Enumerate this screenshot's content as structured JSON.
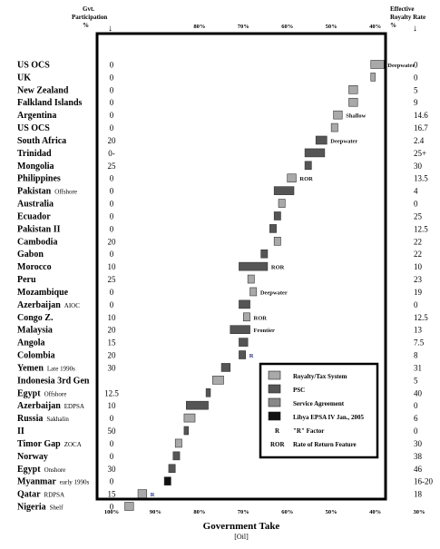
{
  "chart_data": {
    "type": "bar",
    "xlabel": "Government Take",
    "xunit": "[Oil]",
    "xlim": [
      100,
      30
    ],
    "xticks": [
      "100%",
      "90%",
      "80%",
      "70%",
      "60%",
      "50%",
      "40%",
      "30%"
    ],
    "top_ticks": [
      "80%",
      "70%",
      "60%",
      "50%",
      "40%"
    ],
    "left_header": [
      "Gvt.",
      "Participation",
      "%"
    ],
    "right_header": [
      "Effective",
      "Royalty Rate",
      "%"
    ],
    "rows": [
      {
        "country": "US OCS",
        "note": "",
        "participation": "0",
        "royalty": "0",
        "take": [
          38,
          41
        ],
        "kind": "royalty",
        "label": "Deepwater"
      },
      {
        "country": "UK",
        "note": "",
        "participation": "0",
        "royalty": "0",
        "take": [
          40,
          41
        ],
        "kind": "royalty",
        "label": ""
      },
      {
        "country": "New Zealand",
        "note": "",
        "participation": "0",
        "royalty": "5",
        "take": [
          44,
          46
        ],
        "kind": "royalty",
        "label": ""
      },
      {
        "country": "Falkland Islands",
        "note": "",
        "participation": "0",
        "royalty": "9",
        "take": [
          44,
          46
        ],
        "kind": "royalty",
        "label": ""
      },
      {
        "country": "Argentina",
        "note": "",
        "participation": "0",
        "royalty": "14.6",
        "take": [
          47.5,
          49.5
        ],
        "kind": "royalty",
        "label": "Shallow"
      },
      {
        "country": "US OCS",
        "note": "",
        "participation": "0",
        "royalty": "16.7",
        "take": [
          48.5,
          50
        ],
        "kind": "royalty",
        "label": ""
      },
      {
        "country": "South Africa",
        "note": "",
        "participation": "20",
        "royalty": "2.4",
        "take": [
          51,
          53.5
        ],
        "kind": "psc",
        "label": "Deepwater"
      },
      {
        "country": "Trinidad",
        "note": "",
        "participation": "0-",
        "royalty": "25+",
        "take": [
          51.5,
          56
        ],
        "kind": "psc",
        "label": ""
      },
      {
        "country": "Mongolia",
        "note": "",
        "participation": "25",
        "royalty": "30",
        "take": [
          54.5,
          56
        ],
        "kind": "psc",
        "label": ""
      },
      {
        "country": "Philippines",
        "note": "",
        "participation": "0",
        "royalty": "13.5",
        "take": [
          58,
          60
        ],
        "kind": "royalty",
        "label": "ROR"
      },
      {
        "country": "Pakistan",
        "note": "Offshore",
        "participation": "0",
        "royalty": "4",
        "take": [
          58.5,
          63
        ],
        "kind": "psc",
        "label": ""
      },
      {
        "country": "Australia",
        "note": "",
        "participation": "0",
        "royalty": "0",
        "take": [
          60.5,
          62
        ],
        "kind": "royalty",
        "label": ""
      },
      {
        "country": "Ecuador",
        "note": "",
        "participation": "0",
        "royalty": "25",
        "take": [
          61.5,
          63
        ],
        "kind": "psc",
        "label": ""
      },
      {
        "country": "Pakistan II",
        "note": "",
        "participation": "0",
        "royalty": "12.5",
        "take": [
          62.5,
          64
        ],
        "kind": "psc",
        "label": ""
      },
      {
        "country": "Cambodia",
        "note": "",
        "participation": "20",
        "royalty": "22",
        "take": [
          61.5,
          63
        ],
        "kind": "royalty",
        "label": ""
      },
      {
        "country": "Gabon",
        "note": "",
        "participation": "0",
        "royalty": "22",
        "take": [
          64.5,
          66
        ],
        "kind": "psc",
        "label": ""
      },
      {
        "country": "Morocco",
        "note": "",
        "participation": "10",
        "royalty": "10",
        "take": [
          64.5,
          71
        ],
        "kind": "psc",
        "label": "ROR"
      },
      {
        "country": "Peru",
        "note": "",
        "participation": "25",
        "royalty": "23",
        "take": [
          67.5,
          69
        ],
        "kind": "royalty",
        "label": ""
      },
      {
        "country": "Mozambique",
        "note": "",
        "participation": "0",
        "royalty": "19",
        "take": [
          67,
          68.5
        ],
        "kind": "royalty",
        "label": "Deepwater"
      },
      {
        "country": "Azerbaijan",
        "note": "AIOC",
        "participation": "0",
        "royalty": "0",
        "take": [
          68.5,
          71
        ],
        "kind": "psc",
        "label": ""
      },
      {
        "country": "Congo Z.",
        "note": "",
        "participation": "10",
        "royalty": "12.5",
        "take": [
          68.5,
          70
        ],
        "kind": "royalty",
        "label": "ROR"
      },
      {
        "country": "Malaysia",
        "note": "",
        "participation": "20",
        "royalty": "13",
        "take": [
          68.5,
          73
        ],
        "kind": "psc",
        "label": "Frontier"
      },
      {
        "country": "Angola",
        "note": "",
        "participation": "15",
        "royalty": "7.5",
        "take": [
          69,
          71
        ],
        "kind": "psc",
        "label": ""
      },
      {
        "country": "Colombia",
        "note": "",
        "participation": "20",
        "royalty": "8",
        "take": [
          69.5,
          71
        ],
        "kind": "psc",
        "label": "R"
      },
      {
        "country": "Yemen",
        "note": "Late 1990s",
        "participation": "30",
        "royalty": "31",
        "take": [
          73,
          75
        ],
        "kind": "psc",
        "label": ""
      },
      {
        "country": "Indonesia 3rd Gen",
        "note": "",
        "participation": "",
        "royalty": "5",
        "take": [
          74.5,
          77
        ],
        "kind": "royalty",
        "label": ""
      },
      {
        "country": "Egypt",
        "note": "Offshore",
        "participation": "12.5",
        "royalty": "40",
        "take": [
          77.5,
          78.5
        ],
        "kind": "psc",
        "label": ""
      },
      {
        "country": "Azerbaijan",
        "note": "EDPSA",
        "participation": "10",
        "royalty": "0",
        "take": [
          78,
          83
        ],
        "kind": "psc",
        "label": ""
      },
      {
        "country": "Russia",
        "note": "Sakhalin",
        "participation": "0",
        "royalty": "6",
        "take": [
          81,
          83.5
        ],
        "kind": "royalty",
        "label": ""
      },
      {
        "country": "II",
        "note": "",
        "participation": "50",
        "royalty": "0",
        "take": [
          82.5,
          83.5
        ],
        "kind": "psc",
        "label": ""
      },
      {
        "country": "Timor Gap",
        "note": "ZOCA",
        "participation": "0",
        "royalty": "30",
        "take": [
          84,
          85.5
        ],
        "kind": "royalty",
        "label": ""
      },
      {
        "country": "Norway",
        "note": "",
        "participation": "0",
        "royalty": "38",
        "take": [
          84.5,
          86
        ],
        "kind": "psc",
        "label": ""
      },
      {
        "country": "Egypt",
        "note": "Onshore",
        "participation": "30",
        "royalty": "46",
        "take": [
          85.5,
          87
        ],
        "kind": "psc",
        "label": ""
      },
      {
        "country": "Myanmar",
        "note": "early 1990s",
        "participation": "0",
        "royalty": "16-20",
        "take": [
          86.5,
          88
        ],
        "kind": "libya",
        "label": ""
      },
      {
        "country": "Qatar",
        "note": "RDPSA",
        "participation": "15",
        "royalty": "18",
        "take": [
          92,
          94
        ],
        "kind": "royalty",
        "label": "R"
      },
      {
        "country": "Nigeria",
        "note": "Shelf",
        "participation": "0",
        "royalty": "",
        "take": [
          95,
          97
        ],
        "kind": "royalty",
        "label": ""
      }
    ],
    "legend": [
      {
        "key": "royalty",
        "label": "Royalty/Tax System",
        "color": "#a9a9a9"
      },
      {
        "key": "psc",
        "label": "PSC",
        "color": "#555555"
      },
      {
        "key": "service",
        "label": "Service Agreement",
        "color": "#888888"
      },
      {
        "key": "libya",
        "label": "Libya EPSA IV Jan., 2005",
        "color": "#111111"
      },
      {
        "key": "R",
        "symbol": "R",
        "label": "\"R\" Factor"
      },
      {
        "key": "ROR",
        "symbol": "ROR",
        "label": "Rate of Return Feature"
      }
    ]
  }
}
